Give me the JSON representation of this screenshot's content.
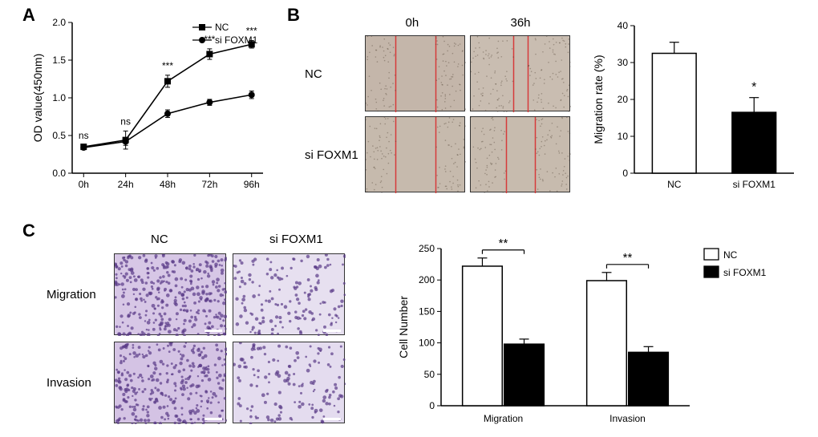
{
  "panels": {
    "A": "A",
    "B": "B",
    "C": "C"
  },
  "panelA": {
    "type": "line",
    "xLabels": [
      "0h",
      "24h",
      "48h",
      "72h",
      "96h"
    ],
    "yTitle": "OD value(450nm)",
    "ylim": [
      0.0,
      2.0
    ],
    "yTicks": [
      0.0,
      0.5,
      1.0,
      1.5,
      2.0
    ],
    "series": [
      {
        "name": "NC",
        "marker": "square",
        "values": [
          0.35,
          0.44,
          1.22,
          1.58,
          1.71
        ],
        "err": [
          0.02,
          0.12,
          0.08,
          0.07,
          0.05
        ],
        "color": "#000000"
      },
      {
        "name": "si FOXM1",
        "marker": "circle",
        "values": [
          0.34,
          0.42,
          0.79,
          0.94,
          1.04
        ],
        "err": [
          0.02,
          0.05,
          0.05,
          0.04,
          0.05
        ],
        "color": "#000000"
      }
    ],
    "annotations": [
      "ns",
      "ns",
      "***",
      "***",
      "***"
    ],
    "line_width": 1.6,
    "background": "#ffffff"
  },
  "panelB": {
    "images": {
      "col_labels": [
        "0h",
        "36h"
      ],
      "row_labels": [
        "NC",
        "si FOXM1"
      ],
      "bg_colors": [
        [
          "#c4b6aa",
          "#c9bdb1"
        ],
        [
          "#c6baad",
          "#c7bbae"
        ]
      ],
      "scratch_line_color": "#d63a3a"
    },
    "bar": {
      "type": "bar",
      "yTitle": "Migration rate (%)",
      "ylim": [
        0,
        40
      ],
      "yTicks": [
        0,
        10,
        20,
        30,
        40
      ],
      "categories": [
        "NC",
        "si FOXM1"
      ],
      "values": [
        32.5,
        16.5
      ],
      "err": [
        3.0,
        4.0
      ],
      "colors": [
        "#ffffff",
        "#000000"
      ],
      "sig": "*",
      "bar_width": 0.55,
      "border": "#000000"
    }
  },
  "panelC": {
    "images": {
      "col_labels": [
        "NC",
        "si FOXM1"
      ],
      "row_labels": [
        "Migration",
        "Invasion"
      ],
      "bg_colors": [
        [
          "#d7c7e6",
          "#e7e0f0"
        ],
        [
          "#d4c3e4",
          "#e4dcef"
        ]
      ],
      "stain_color": "#5a3a88"
    },
    "bar": {
      "type": "grouped-bar",
      "yTitle": "Cell Number",
      "ylim": [
        0,
        250
      ],
      "yTicks": [
        0,
        50,
        100,
        150,
        200,
        250
      ],
      "groups": [
        "Migration",
        "Invasion"
      ],
      "series": [
        {
          "name": "NC",
          "color": "#ffffff",
          "values": [
            222,
            199
          ],
          "err": [
            13,
            13
          ]
        },
        {
          "name": "si FOXM1",
          "color": "#000000",
          "values": [
            98,
            85
          ],
          "err": [
            8,
            9
          ]
        }
      ],
      "sig": [
        "**",
        "**"
      ],
      "bar_width": 0.7,
      "border": "#000000"
    }
  }
}
